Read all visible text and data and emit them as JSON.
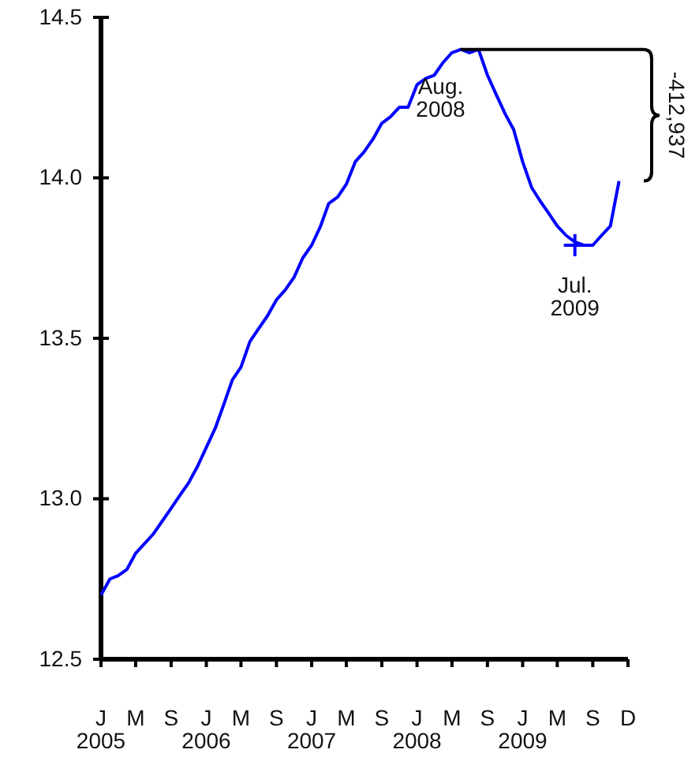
{
  "chart_data": {
    "type": "line",
    "x": [
      "2005-01",
      "2005-02",
      "2005-03",
      "2005-04",
      "2005-05",
      "2005-06",
      "2005-07",
      "2005-08",
      "2005-09",
      "2005-10",
      "2005-11",
      "2005-12",
      "2006-01",
      "2006-02",
      "2006-03",
      "2006-04",
      "2006-05",
      "2006-06",
      "2006-07",
      "2006-08",
      "2006-09",
      "2006-10",
      "2006-11",
      "2006-12",
      "2007-01",
      "2007-02",
      "2007-03",
      "2007-04",
      "2007-05",
      "2007-06",
      "2007-07",
      "2007-08",
      "2007-09",
      "2007-10",
      "2007-11",
      "2007-12",
      "2008-01",
      "2008-02",
      "2008-03",
      "2008-04",
      "2008-05",
      "2008-06",
      "2008-07",
      "2008-08",
      "2008-09",
      "2008-10",
      "2008-11",
      "2008-12",
      "2009-01",
      "2009-02",
      "2009-03",
      "2009-04",
      "2009-05",
      "2009-06",
      "2009-07",
      "2009-08",
      "2009-09",
      "2009-10",
      "2009-11",
      "2009-12"
    ],
    "series": [
      {
        "color": "#0000ff",
        "values": [
          12.7,
          12.75,
          12.76,
          12.78,
          12.83,
          12.86,
          12.89,
          12.93,
          12.97,
          13.01,
          13.05,
          13.1,
          13.16,
          13.22,
          13.29,
          13.37,
          13.41,
          13.49,
          13.53,
          13.57,
          13.62,
          13.65,
          13.69,
          13.75,
          13.79,
          13.85,
          13.92,
          13.94,
          13.98,
          14.05,
          14.08,
          14.12,
          14.17,
          14.19,
          14.22,
          14.22,
          14.29,
          14.31,
          14.32,
          14.36,
          14.39,
          14.4,
          14.39,
          14.4,
          14.32,
          14.26,
          14.2,
          14.15,
          14.05,
          13.97,
          13.93,
          13.89,
          13.85,
          13.82,
          13.8,
          13.79,
          13.79,
          13.82,
          13.85,
          13.99
        ]
      }
    ],
    "xlim": [
      "2005-01",
      "2010-01"
    ],
    "xticks": [
      {
        "value": "2005-01",
        "label": "J\n2005"
      },
      {
        "value": "2005-05",
        "label": "M"
      },
      {
        "value": "2005-09",
        "label": "S"
      },
      {
        "value": "2006-01",
        "label": "J\n2006"
      },
      {
        "value": "2006-05",
        "label": "M"
      },
      {
        "value": "2006-09",
        "label": "S"
      },
      {
        "value": "2007-01",
        "label": "J\n2007"
      },
      {
        "value": "2007-05",
        "label": "M"
      },
      {
        "value": "2007-09",
        "label": "S"
      },
      {
        "value": "2008-01",
        "label": "J\n2008"
      },
      {
        "value": "2008-05",
        "label": "M"
      },
      {
        "value": "2008-09",
        "label": "S"
      },
      {
        "value": "2009-01",
        "label": "J\n2009"
      },
      {
        "value": "2009-05",
        "label": "M"
      },
      {
        "value": "2009-09",
        "label": "S"
      },
      {
        "value": "2010-01",
        "label": "D"
      }
    ],
    "ylim": [
      12.5,
      14.5
    ],
    "yticks": [
      {
        "value": 12.5,
        "label": "12.5"
      },
      {
        "value": 13,
        "label": "13.0"
      },
      {
        "value": 13.5,
        "label": "13.5"
      },
      {
        "value": 14,
        "label": "14.0"
      },
      {
        "value": 14.5,
        "label": "14.5"
      }
    ],
    "grid": false,
    "marker": "none",
    "line_style": "solid",
    "annotations": [
      {
        "text": "Aug.\n2008",
        "x": "2008-08",
        "y": 14.4
      },
      {
        "text": "Jul.\n2009",
        "x": "2009-07",
        "y": 13.79
      },
      "-412,937"
    ]
  }
}
